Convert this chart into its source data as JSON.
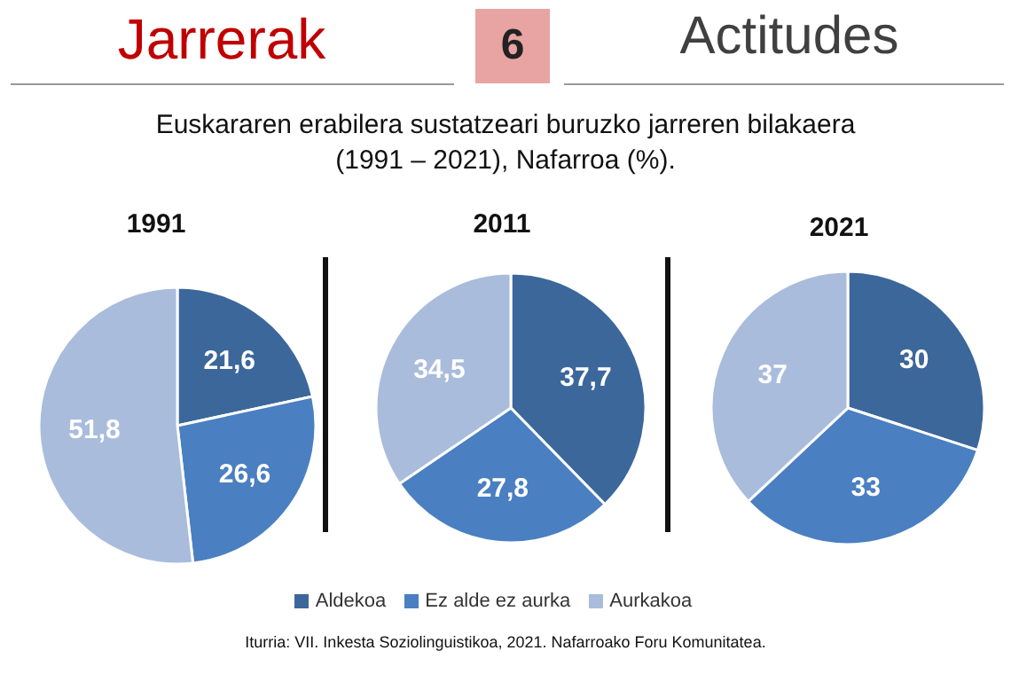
{
  "chart_data": [
    {
      "type": "pie",
      "title": "1991",
      "categories": [
        null,
        null,
        null
      ],
      "values": [
        21.6,
        26.6,
        51.8
      ],
      "colors": [
        "#3c679b",
        "#4a7fc1",
        "#a9bcdc"
      ],
      "value_labels": [
        "21,6",
        "26,6",
        "51,8"
      ],
      "annotations": [
        "Jarrerak",
        "6",
        "Actitudes",
        "Euskararen erabilera sustatzeari buruzko jarreren bilakaera (1991 – 2021), Nafarroa (%).",
        "Iturria: VII. Inkesta Soziolinguistikoa, 2021. Nafarroako Foru Komunitatea."
      ]
    },
    {
      "type": "pie",
      "title": "2011",
      "categories": [
        "Aldekoa",
        "Ez alde ez aurka",
        "Aurkakoa"
      ],
      "values": [
        37.7,
        27.8,
        34.5
      ],
      "colors": [
        "#3c679b",
        "#4a7fc1",
        "#a9bcdc"
      ],
      "value_labels": [
        "37,7",
        "27,8",
        "34,5"
      ],
      "legend": "bottom"
    },
    {
      "type": "pie",
      "title": "2021",
      "categories": [
        null,
        null,
        null
      ],
      "values": [
        30,
        33,
        37
      ],
      "colors": [
        "#3c679b",
        "#4a7fc1",
        "#a9bcdc"
      ],
      "value_labels": [
        "30",
        "33",
        "37"
      ]
    }
  ]
}
